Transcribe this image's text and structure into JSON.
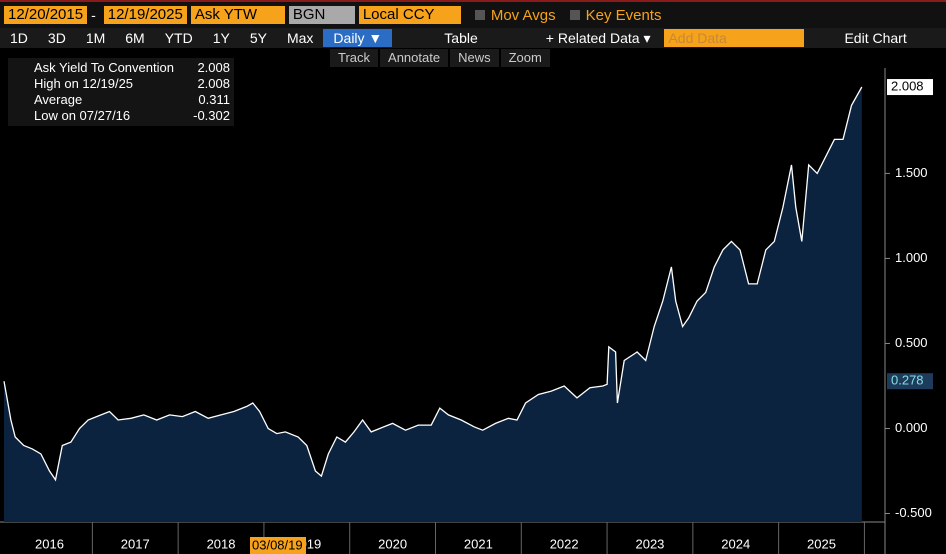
{
  "toolbar": {
    "start_date": "12/20/2015",
    "separator": "-",
    "end_date": "12/19/2025",
    "field": "Ask YTW",
    "source": "BGN",
    "currency": "Local CCY",
    "mov_avgs": "Mov Avgs",
    "key_events": "Key Events"
  },
  "buttons": [
    "1D",
    "3D",
    "1M",
    "6M",
    "YTD",
    "1Y",
    "5Y",
    "Max",
    "Daily ▼",
    "Table",
    "+ Related Data ▾",
    "Add Data",
    "Edit Chart"
  ],
  "tools": [
    "Track",
    "Annotate",
    "News",
    "Zoom"
  ],
  "chart_data": {
    "type": "area",
    "legend_box": [
      {
        "label": "Ask Yield To Convention",
        "value": 2.008
      },
      {
        "label": "High on 12/19/25",
        "value": 2.008
      },
      {
        "label": "Average",
        "value": 0.311
      },
      {
        "label": "Low on 07/27/16",
        "value": -0.302
      }
    ],
    "annotation": "03/08/19",
    "markers": [
      {
        "value": 2.008,
        "color": "#ffffff"
      },
      {
        "value": 0.278,
        "color": "#1f3b5c"
      }
    ],
    "xlim": [
      2015.97,
      2026.24
    ],
    "xticks": [
      {
        "value": 2016.5,
        "label": "2016"
      },
      {
        "value": 2017.5,
        "label": "2017"
      },
      {
        "value": 2018.5,
        "label": "2018"
      },
      {
        "value": 2019.5,
        "label": "2019"
      },
      {
        "value": 2020.5,
        "label": "2020"
      },
      {
        "value": 2021.5,
        "label": "2021"
      },
      {
        "value": 2022.5,
        "label": "2022"
      },
      {
        "value": 2023.5,
        "label": "2023"
      },
      {
        "value": 2024.5,
        "label": "2024"
      },
      {
        "value": 2025.5,
        "label": "2025"
      }
    ],
    "ylim": [
      -0.55,
      2.12
    ],
    "yticks": [
      {
        "value": -0.5,
        "label": "-0.500"
      },
      {
        "value": 0,
        "label": "0.000"
      },
      {
        "value": 0.5,
        "label": "0.500"
      },
      {
        "value": 1,
        "label": "1.000"
      },
      {
        "value": 1.5,
        "label": "1.500"
      }
    ],
    "series": [
      {
        "name": "Ask Yield To Convention",
        "color": "#ffffff",
        "fill": "#0c2340",
        "x": [
          2015.97,
          2016.05,
          2016.1,
          2016.2,
          2016.3,
          2016.4,
          2016.5,
          2016.57,
          2016.65,
          2016.75,
          2016.85,
          2016.95,
          2017.05,
          2017.2,
          2017.3,
          2017.45,
          2017.6,
          2017.75,
          2017.9,
          2018.05,
          2018.2,
          2018.35,
          2018.5,
          2018.65,
          2018.8,
          2018.87,
          2018.95,
          2019.05,
          2019.15,
          2019.25,
          2019.4,
          2019.5,
          2019.6,
          2019.67,
          2019.75,
          2019.85,
          2019.95,
          2020.05,
          2020.15,
          2020.25,
          2020.35,
          2020.5,
          2020.65,
          2020.8,
          2020.95,
          2021.05,
          2021.15,
          2021.3,
          2021.45,
          2021.55,
          2021.7,
          2021.85,
          2021.95,
          2022.05,
          2022.2,
          2022.35,
          2022.5,
          2022.65,
          2022.8,
          2022.95,
          2023.0,
          2023.02,
          2023.1,
          2023.12,
          2023.2,
          2023.35,
          2023.45,
          2023.55,
          2023.65,
          2023.75,
          2023.8,
          2023.88,
          2023.95,
          2024.05,
          2024.15,
          2024.25,
          2024.35,
          2024.45,
          2024.55,
          2024.65,
          2024.75,
          2024.85,
          2024.95,
          2025.05,
          2025.15,
          2025.2,
          2025.27,
          2025.35,
          2025.45,
          2025.55,
          2025.65,
          2025.75,
          2025.85,
          2025.97
        ],
        "values": [
          0.278,
          0.05,
          -0.05,
          -0.1,
          -0.12,
          -0.15,
          -0.25,
          -0.302,
          -0.1,
          -0.08,
          0.0,
          0.05,
          0.07,
          0.1,
          0.05,
          0.06,
          0.08,
          0.05,
          0.08,
          0.07,
          0.1,
          0.06,
          0.08,
          0.1,
          0.13,
          0.15,
          0.1,
          0.0,
          -0.03,
          -0.02,
          -0.05,
          -0.1,
          -0.25,
          -0.28,
          -0.15,
          -0.05,
          -0.08,
          -0.02,
          0.05,
          -0.02,
          0.0,
          0.03,
          -0.01,
          0.02,
          0.02,
          0.12,
          0.08,
          0.05,
          0.01,
          -0.01,
          0.03,
          0.06,
          0.05,
          0.15,
          0.2,
          0.22,
          0.25,
          0.18,
          0.24,
          0.25,
          0.26,
          0.48,
          0.45,
          0.15,
          0.4,
          0.45,
          0.4,
          0.6,
          0.75,
          0.95,
          0.75,
          0.6,
          0.65,
          0.75,
          0.8,
          0.95,
          1.05,
          1.1,
          1.05,
          0.85,
          0.85,
          1.05,
          1.1,
          1.3,
          1.55,
          1.3,
          1.1,
          1.55,
          1.5,
          1.6,
          1.7,
          1.7,
          1.9,
          2.008
        ]
      }
    ]
  }
}
